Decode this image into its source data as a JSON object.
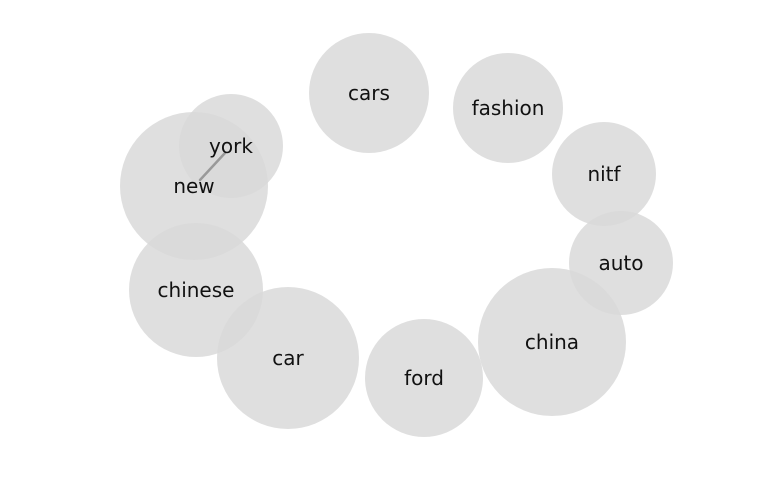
{
  "diagram": {
    "type": "bubble-network",
    "bubble_color": "#d9d9d9",
    "link_color": "#999999",
    "text_color": "#111111",
    "nodes": [
      {
        "id": "new",
        "label": "new"
      },
      {
        "id": "york",
        "label": "york"
      },
      {
        "id": "cars",
        "label": "cars"
      },
      {
        "id": "fashion",
        "label": "fashion"
      },
      {
        "id": "nitf",
        "label": "nitf"
      },
      {
        "id": "auto",
        "label": "auto"
      },
      {
        "id": "chinese",
        "label": "chinese"
      },
      {
        "id": "car",
        "label": "car"
      },
      {
        "id": "china",
        "label": "china"
      },
      {
        "id": "ford",
        "label": "ford"
      }
    ],
    "links": [
      {
        "source": "new",
        "target": "york"
      }
    ]
  }
}
